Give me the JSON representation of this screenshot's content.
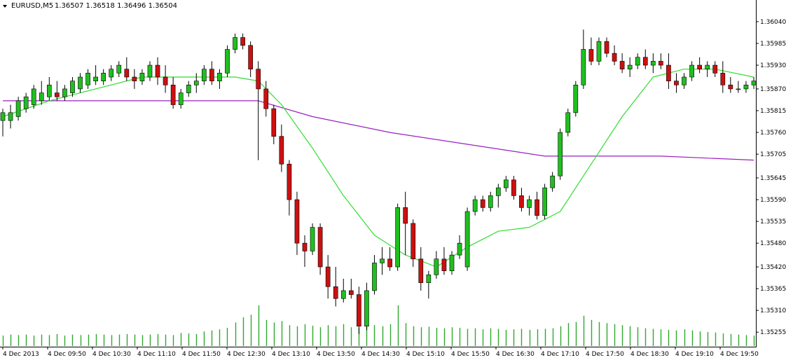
{
  "header": {
    "symbol_label": "EURUSD,M5",
    "ohlc_values": "1.36507 1.36518 1.36496 1.36504"
  },
  "colors": {
    "background": "#ffffff",
    "axis": "#000000",
    "bull": "#1fbf1f",
    "bear": "#cc1010",
    "wick": "#000000",
    "ma_fast": "#33dd33",
    "ma_slow": "#9a20c0",
    "volume": "#2fa82f"
  },
  "chart_data": {
    "type": "candlestick",
    "symbol": "EURUSD",
    "timeframe": "M5",
    "grid": false,
    "ylim": [
      1.3522,
      1.3607
    ],
    "y_ticks": [
      "1.36040",
      "1.35985",
      "1.35930",
      "1.35870",
      "1.35815",
      "1.35760",
      "1.35705",
      "1.35645",
      "1.35590",
      "1.35535",
      "1.35480",
      "1.35420",
      "1.35365",
      "1.35310",
      "1.35255"
    ],
    "x_tick_labels": [
      "4 Dec 2013",
      "4 Dec 09:50",
      "4 Dec 10:30",
      "4 Dec 11:10",
      "4 Dec 11:50",
      "4 Dec 12:30",
      "4 Dec 13:10",
      "4 Dec 13:50",
      "4 Dec 14:30",
      "4 Dec 15:10",
      "4 Dec 15:50",
      "4 Dec 16:30",
      "4 Dec 17:10",
      "4 Dec 17:50",
      "4 Dec 18:30",
      "4 Dec 19:10",
      "4 Dec 19:50"
    ],
    "candles": [
      [
        1.3579,
        1.3582,
        1.3575,
        1.3581
      ],
      [
        1.3579,
        1.3583,
        1.3577,
        1.3581
      ],
      [
        1.358,
        1.3585,
        1.3579,
        1.3584
      ],
      [
        1.3582,
        1.3586,
        1.3581,
        1.3585
      ],
      [
        1.3583,
        1.3588,
        1.3582,
        1.3587
      ],
      [
        1.3584,
        1.3589,
        1.3583,
        1.3586
      ],
      [
        1.3585,
        1.359,
        1.3584,
        1.3588
      ],
      [
        1.3586,
        1.3589,
        1.3584,
        1.3585
      ],
      [
        1.3585,
        1.3588,
        1.3584,
        1.3587
      ],
      [
        1.3586,
        1.359,
        1.3585,
        1.3589
      ],
      [
        1.3587,
        1.3591,
        1.3586,
        1.359
      ],
      [
        1.3588,
        1.3592,
        1.3587,
        1.3591
      ],
      [
        1.3589,
        1.3593,
        1.3588,
        1.359
      ],
      [
        1.3589,
        1.3592,
        1.3588,
        1.3591
      ],
      [
        1.359,
        1.3593,
        1.3589,
        1.3592
      ],
      [
        1.3591,
        1.3594,
        1.359,
        1.3593
      ],
      [
        1.3592,
        1.3595,
        1.3589,
        1.359
      ],
      [
        1.359,
        1.3592,
        1.3587,
        1.3589
      ],
      [
        1.3589,
        1.3592,
        1.3588,
        1.3591
      ],
      [
        1.359,
        1.3594,
        1.3589,
        1.3593
      ],
      [
        1.3593,
        1.3595,
        1.3588,
        1.359
      ],
      [
        1.359,
        1.3593,
        1.3586,
        1.3588
      ],
      [
        1.3588,
        1.359,
        1.3582,
        1.3583
      ],
      [
        1.3583,
        1.3587,
        1.3582,
        1.3586
      ],
      [
        1.3586,
        1.3589,
        1.3585,
        1.3588
      ],
      [
        1.3588,
        1.3591,
        1.3586,
        1.3589
      ],
      [
        1.3589,
        1.3593,
        1.3588,
        1.3592
      ],
      [
        1.3592,
        1.3594,
        1.3588,
        1.3589
      ],
      [
        1.3589,
        1.3592,
        1.3587,
        1.3591
      ],
      [
        1.3591,
        1.3598,
        1.359,
        1.3597
      ],
      [
        1.3597,
        1.3601,
        1.3596,
        1.36
      ],
      [
        1.36,
        1.3601,
        1.3597,
        1.3598
      ],
      [
        1.3598,
        1.3599,
        1.359,
        1.3592
      ],
      [
        1.3592,
        1.3594,
        1.3569,
        1.3587
      ],
      [
        1.3587,
        1.3589,
        1.358,
        1.3582
      ],
      [
        1.3582,
        1.3583,
        1.3573,
        1.3575
      ],
      [
        1.3575,
        1.3578,
        1.3566,
        1.3568
      ],
      [
        1.3568,
        1.3569,
        1.3555,
        1.3559
      ],
      [
        1.3559,
        1.3561,
        1.3545,
        1.3548
      ],
      [
        1.3548,
        1.355,
        1.3542,
        1.3546
      ],
      [
        1.3546,
        1.3553,
        1.3545,
        1.3552
      ],
      [
        1.3552,
        1.3553,
        1.354,
        1.3542
      ],
      [
        1.3542,
        1.3545,
        1.3534,
        1.3537
      ],
      [
        1.3537,
        1.3542,
        1.3532,
        1.3534
      ],
      [
        1.3534,
        1.3539,
        1.3533,
        1.3536
      ],
      [
        1.3536,
        1.3539,
        1.3534,
        1.3535
      ],
      [
        1.3535,
        1.3537,
        1.3525,
        1.3527
      ],
      [
        1.3527,
        1.3538,
        1.3526,
        1.3536
      ],
      [
        1.3536,
        1.3545,
        1.3535,
        1.3543
      ],
      [
        1.3543,
        1.3547,
        1.354,
        1.3544
      ],
      [
        1.3544,
        1.3547,
        1.3541,
        1.3542
      ],
      [
        1.3542,
        1.3558,
        1.3541,
        1.3557
      ],
      [
        1.3557,
        1.3561,
        1.3545,
        1.3553
      ],
      [
        1.3553,
        1.3554,
        1.3542,
        1.3544
      ],
      [
        1.3544,
        1.3547,
        1.3536,
        1.3538
      ],
      [
        1.3538,
        1.3541,
        1.3534,
        1.354
      ],
      [
        1.354,
        1.3546,
        1.3539,
        1.3544
      ],
      [
        1.3544,
        1.3547,
        1.354,
        1.3541
      ],
      [
        1.3541,
        1.3546,
        1.354,
        1.3545
      ],
      [
        1.3545,
        1.355,
        1.3544,
        1.3548
      ],
      [
        1.3542,
        1.3557,
        1.3541,
        1.3556
      ],
      [
        1.3556,
        1.356,
        1.3555,
        1.3559
      ],
      [
        1.3559,
        1.356,
        1.3556,
        1.3557
      ],
      [
        1.3557,
        1.3561,
        1.3556,
        1.356
      ],
      [
        1.356,
        1.3563,
        1.3557,
        1.3562
      ],
      [
        1.3562,
        1.3565,
        1.3561,
        1.3564
      ],
      [
        1.3564,
        1.3565,
        1.3559,
        1.356
      ],
      [
        1.356,
        1.3562,
        1.3556,
        1.3557
      ],
      [
        1.3557,
        1.356,
        1.3555,
        1.3559
      ],
      [
        1.3559,
        1.3561,
        1.3554,
        1.3555
      ],
      [
        1.3555,
        1.3563,
        1.3554,
        1.3562
      ],
      [
        1.3562,
        1.3566,
        1.3561,
        1.3565
      ],
      [
        1.3565,
        1.3577,
        1.3564,
        1.3576
      ],
      [
        1.3576,
        1.3582,
        1.3575,
        1.3581
      ],
      [
        1.3581,
        1.3589,
        1.358,
        1.3588
      ],
      [
        1.3588,
        1.3602,
        1.3587,
        1.3597
      ],
      [
        1.3597,
        1.36,
        1.3593,
        1.3594
      ],
      [
        1.3594,
        1.36,
        1.3593,
        1.3599
      ],
      [
        1.3599,
        1.36,
        1.3595,
        1.3596
      ],
      [
        1.3596,
        1.3598,
        1.3593,
        1.3594
      ],
      [
        1.3594,
        1.3596,
        1.3591,
        1.3592
      ],
      [
        1.3592,
        1.3595,
        1.359,
        1.3593
      ],
      [
        1.3593,
        1.3596,
        1.3592,
        1.3595
      ],
      [
        1.3595,
        1.3597,
        1.3592,
        1.3593
      ],
      [
        1.3593,
        1.3596,
        1.3591,
        1.3594
      ],
      [
        1.3594,
        1.3596,
        1.3592,
        1.3593
      ],
      [
        1.3593,
        1.3596,
        1.3587,
        1.3589
      ],
      [
        1.3589,
        1.3591,
        1.3586,
        1.3588
      ],
      [
        1.3588,
        1.3591,
        1.3587,
        1.359
      ],
      [
        1.359,
        1.3594,
        1.3589,
        1.3593
      ],
      [
        1.3593,
        1.3595,
        1.3591,
        1.3592
      ],
      [
        1.3592,
        1.3594,
        1.359,
        1.3593
      ],
      [
        1.3593,
        1.3594,
        1.359,
        1.3591
      ],
      [
        1.3591,
        1.3594,
        1.3586,
        1.3588
      ],
      [
        1.3588,
        1.359,
        1.3586,
        1.3587
      ],
      [
        1.3587,
        1.3589,
        1.3586,
        1.3587
      ],
      [
        1.3587,
        1.3589,
        1.3586,
        1.3588
      ],
      [
        1.3588,
        1.359,
        1.3587,
        1.3589
      ]
    ],
    "volumes": [
      20,
      22,
      21,
      22,
      20,
      22,
      21,
      23,
      20,
      22,
      21,
      22,
      23,
      22,
      21,
      22,
      23,
      22,
      21,
      22,
      23,
      22,
      21,
      25,
      24,
      23,
      28,
      30,
      32,
      35,
      45,
      55,
      60,
      78,
      50,
      45,
      48,
      40,
      38,
      42,
      39,
      36,
      40,
      38,
      42,
      36,
      35,
      44,
      40,
      38,
      42,
      78,
      44,
      38,
      36,
      37,
      35,
      34,
      36,
      35,
      33,
      34,
      32,
      34,
      33,
      31,
      32,
      33,
      31,
      32,
      33,
      34,
      38,
      44,
      46,
      58,
      50,
      46,
      44,
      42,
      40,
      38,
      36,
      34,
      33,
      32,
      31,
      30,
      32,
      30,
      28,
      27,
      26,
      24,
      23,
      22,
      21,
      20
    ],
    "ma_fast": [
      [
        0,
        1.358
      ],
      [
        6,
        1.3584
      ],
      [
        12,
        1.3587
      ],
      [
        18,
        1.359
      ],
      [
        24,
        1.359
      ],
      [
        30,
        1.359
      ],
      [
        33,
        1.3589
      ],
      [
        36,
        1.3583
      ],
      [
        40,
        1.3572
      ],
      [
        44,
        1.356
      ],
      [
        48,
        1.355
      ],
      [
        52,
        1.3545
      ],
      [
        56,
        1.3542
      ],
      [
        60,
        1.3547
      ],
      [
        64,
        1.3551
      ],
      [
        68,
        1.3552
      ],
      [
        72,
        1.3556
      ],
      [
        76,
        1.3568
      ],
      [
        80,
        1.358
      ],
      [
        84,
        1.359
      ],
      [
        88,
        1.3592
      ],
      [
        92,
        1.3592
      ],
      [
        97,
        1.359
      ]
    ],
    "ma_slow": [
      [
        0,
        1.3584
      ],
      [
        12,
        1.3584
      ],
      [
        24,
        1.3584
      ],
      [
        33,
        1.3584
      ],
      [
        40,
        1.358
      ],
      [
        50,
        1.3576
      ],
      [
        60,
        1.3573
      ],
      [
        70,
        1.357
      ],
      [
        76,
        1.357
      ],
      [
        85,
        1.357
      ],
      [
        97,
        1.3569
      ]
    ]
  }
}
